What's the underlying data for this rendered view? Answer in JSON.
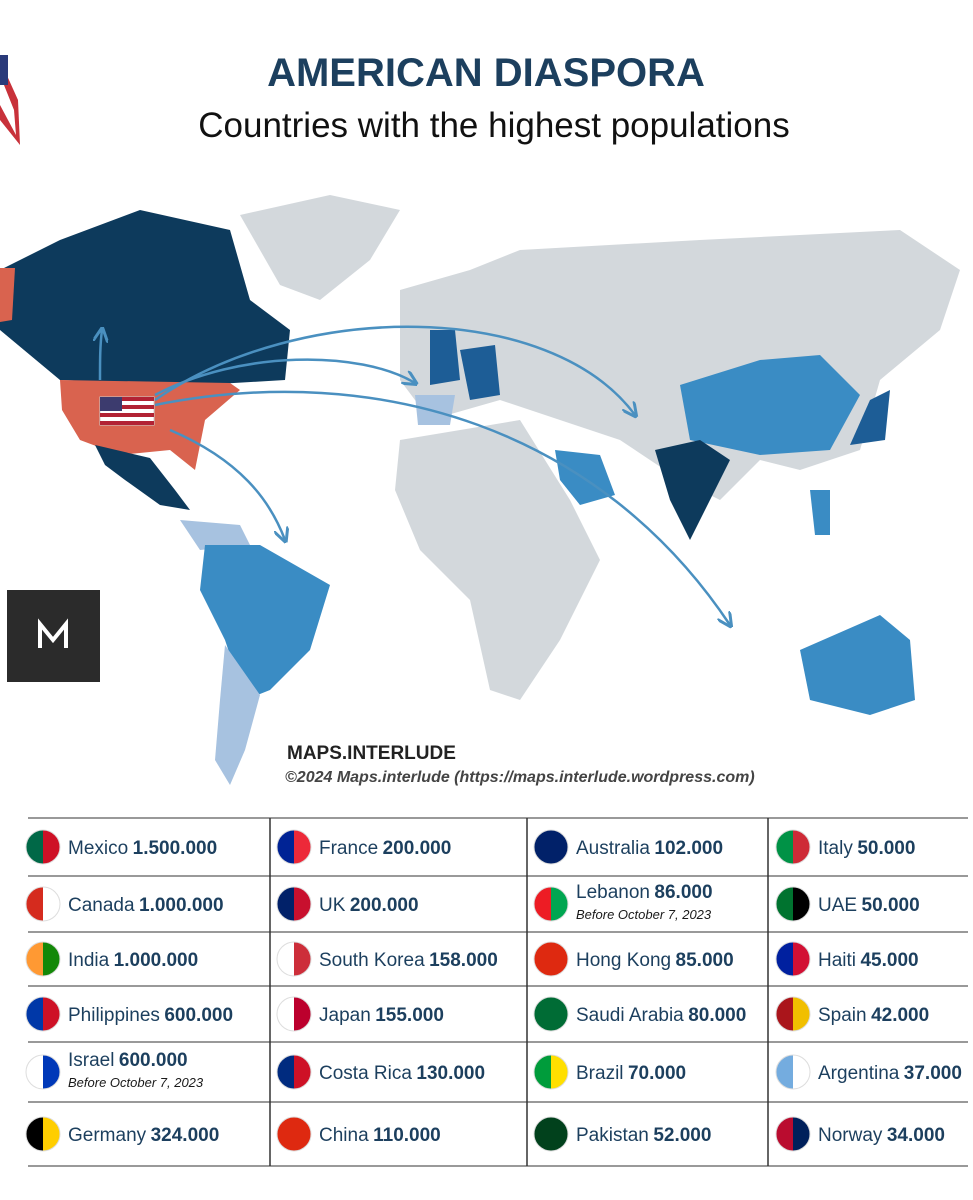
{
  "header": {
    "title": "AMERICAN DIASPORA",
    "subtitle": "Countries with the highest populations"
  },
  "credits": {
    "brand": "MAPS.INTERLUDE",
    "copyright": "©2024 Maps.interlude (https://maps.interlude.wordpress.com)"
  },
  "table": {
    "columns": [
      [
        {
          "country": "Mexico",
          "value": "1.500.000"
        },
        {
          "country": "Canada",
          "value": "1.000.000"
        },
        {
          "country": "India",
          "value": "1.000.000"
        },
        {
          "country": "Philippines",
          "value": "600.000"
        },
        {
          "country": "Israel",
          "value": "600.000",
          "note": "Before October 7, 2023"
        },
        {
          "country": "Germany",
          "value": "324.000"
        }
      ],
      [
        {
          "country": "France",
          "value": "200.000"
        },
        {
          "country": "UK",
          "value": "200.000"
        },
        {
          "country": "South Korea",
          "value": "158.000"
        },
        {
          "country": "Japan",
          "value": "155.000"
        },
        {
          "country": "Costa Rica",
          "value": "130.000"
        },
        {
          "country": "China",
          "value": "110.000"
        }
      ],
      [
        {
          "country": "Australia",
          "value": "102.000"
        },
        {
          "country": "Lebanon",
          "value": "86.000",
          "note": "Before October 7, 2023"
        },
        {
          "country": "Hong Kong",
          "value": "85.000"
        },
        {
          "country": "Saudi Arabia",
          "value": "80.000"
        },
        {
          "country": "Brazil",
          "value": "70.000"
        },
        {
          "country": "Pakistan",
          "value": "52.000"
        }
      ],
      [
        {
          "country": "Italy",
          "value": "50.000"
        },
        {
          "country": "UAE",
          "value": "50.000"
        },
        {
          "country": "Haiti",
          "value": "45.000"
        },
        {
          "country": "Spain",
          "value": "42.000"
        },
        {
          "country": "Argentina",
          "value": "37.000"
        },
        {
          "country": "Norway",
          "value": "34.000"
        }
      ]
    ]
  }
}
